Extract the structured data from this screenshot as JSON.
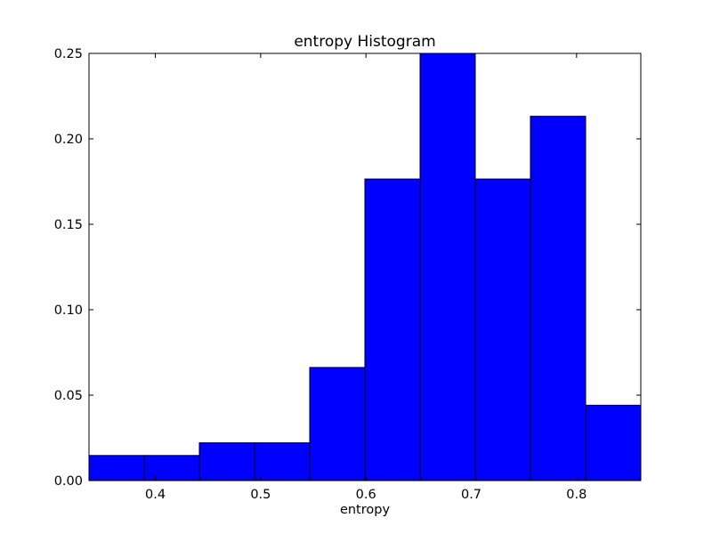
{
  "chart_data": {
    "type": "bar",
    "title": "entropy Histogram",
    "xlabel": "entropy",
    "ylabel": "",
    "xlim": [
      0.337,
      0.861
    ],
    "ylim": [
      0,
      0.25
    ],
    "bins": [
      {
        "x0": 0.337,
        "x1": 0.3894,
        "value": 0.0147
      },
      {
        "x0": 0.3894,
        "x1": 0.4418,
        "value": 0.0147
      },
      {
        "x0": 0.4418,
        "x1": 0.4942,
        "value": 0.0221
      },
      {
        "x0": 0.4942,
        "x1": 0.5466,
        "value": 0.0221
      },
      {
        "x0": 0.5466,
        "x1": 0.599,
        "value": 0.0662
      },
      {
        "x0": 0.599,
        "x1": 0.6514,
        "value": 0.1765
      },
      {
        "x0": 0.6514,
        "x1": 0.7038,
        "value": 0.25
      },
      {
        "x0": 0.7038,
        "x1": 0.7562,
        "value": 0.1765
      },
      {
        "x0": 0.7562,
        "x1": 0.8086,
        "value": 0.2132
      },
      {
        "x0": 0.8086,
        "x1": 0.861,
        "value": 0.0441
      }
    ],
    "xticks": [
      {
        "value": 0.4,
        "label": "0.4"
      },
      {
        "value": 0.5,
        "label": "0.5"
      },
      {
        "value": 0.6,
        "label": "0.6"
      },
      {
        "value": 0.7,
        "label": "0.7"
      },
      {
        "value": 0.8,
        "label": "0.8"
      }
    ],
    "yticks": [
      {
        "value": 0.0,
        "label": "0.00"
      },
      {
        "value": 0.05,
        "label": "0.05"
      },
      {
        "value": 0.1,
        "label": "0.10"
      },
      {
        "value": 0.15,
        "label": "0.15"
      },
      {
        "value": 0.2,
        "label": "0.20"
      },
      {
        "value": 0.25,
        "label": "0.25"
      }
    ],
    "bar_color": "#0000ff",
    "edge_color": "#000000",
    "grid": false,
    "legend": "none"
  }
}
